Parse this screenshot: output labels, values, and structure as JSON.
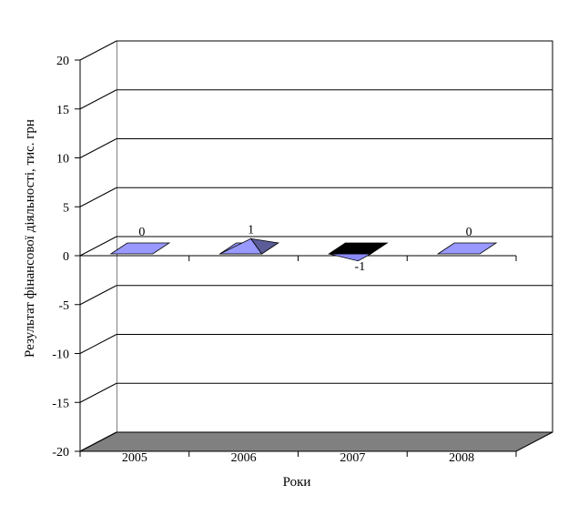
{
  "chart_data": {
    "type": "bar",
    "style": "3d-pyramid",
    "categories": [
      "2005",
      "2006",
      "2007",
      "2008"
    ],
    "values": [
      0,
      1,
      -1,
      0
    ],
    "data_labels": [
      "0",
      "1",
      "-1",
      "0"
    ],
    "xlabel": "Роки",
    "ylabel": "Результат фінансової діяльності, тис. грн",
    "ylim": [
      -20,
      20
    ],
    "yticks": [
      "20",
      "15",
      "10",
      "5",
      "0",
      "-5",
      "-10",
      "-15",
      "-20"
    ],
    "grid": true,
    "colors": {
      "positive_front": "#9999ff",
      "positive_side": "#5c5c99",
      "negative_front": "#000000",
      "negative_side": "#8a8aff",
      "floor": "#808080"
    }
  }
}
